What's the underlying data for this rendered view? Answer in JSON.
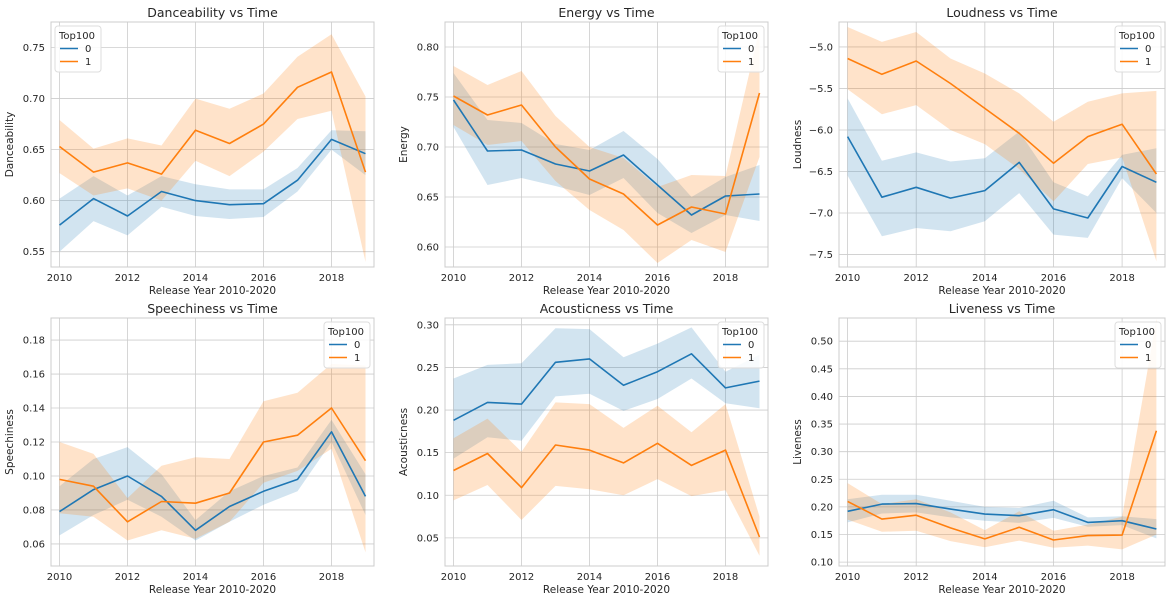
{
  "colors": {
    "series_0": "#1f77b4",
    "series_1": "#ff7f0e",
    "band_0": "#1f77b4",
    "band_1": "#ff7f0e",
    "grid": "#cccccc",
    "frame": "#cccccc"
  },
  "chart_data": [
    {
      "type": "line",
      "title": "Danceability vs Time",
      "xlabel": "Release Year 2010-2020",
      "ylabel": "Danceability",
      "x": [
        2010,
        2011,
        2012,
        2013,
        2014,
        2015,
        2016,
        2017,
        2018,
        2019
      ],
      "xlim": [
        2009.75,
        2019.25
      ],
      "ylim": [
        0.535,
        0.775
      ],
      "xticks": [
        2010,
        2012,
        2014,
        2016,
        2018
      ],
      "yticks": [
        0.55,
        0.6,
        0.65,
        0.7,
        0.75
      ],
      "ytick_labels": [
        "0.55",
        "0.60",
        "0.65",
        "0.70",
        "0.75"
      ],
      "grid": true,
      "legend": {
        "title": "Top100",
        "position": "top-left",
        "entries": [
          "0",
          "1"
        ]
      },
      "series": [
        {
          "name": "0",
          "values": [
            0.576,
            0.602,
            0.585,
            0.609,
            0.6,
            0.596,
            0.597,
            0.62,
            0.66,
            0.646
          ],
          "ci_low": [
            0.55,
            0.58,
            0.566,
            0.594,
            0.585,
            0.582,
            0.584,
            0.609,
            0.65,
            0.625
          ],
          "ci_high": [
            0.602,
            0.624,
            0.605,
            0.624,
            0.616,
            0.611,
            0.611,
            0.632,
            0.669,
            0.668
          ]
        },
        {
          "name": "1",
          "values": [
            0.653,
            0.628,
            0.637,
            0.626,
            0.669,
            0.656,
            0.675,
            0.711,
            0.726,
            0.628
          ],
          "ci_low": [
            0.627,
            0.605,
            0.612,
            0.6,
            0.639,
            0.624,
            0.648,
            0.68,
            0.688,
            0.54
          ],
          "ci_high": [
            0.679,
            0.651,
            0.661,
            0.654,
            0.7,
            0.69,
            0.705,
            0.741,
            0.763,
            0.702
          ]
        }
      ]
    },
    {
      "type": "line",
      "title": "Energy vs Time",
      "xlabel": "Release Year 2010-2020",
      "ylabel": "Energy",
      "x": [
        2010,
        2011,
        2012,
        2013,
        2014,
        2015,
        2016,
        2017,
        2018,
        2019
      ],
      "xlim": [
        2009.75,
        2019.25
      ],
      "ylim": [
        0.58,
        0.825
      ],
      "xticks": [
        2010,
        2012,
        2014,
        2016,
        2018
      ],
      "yticks": [
        0.6,
        0.65,
        0.7,
        0.75,
        0.8
      ],
      "ytick_labels": [
        "0.60",
        "0.65",
        "0.70",
        "0.75",
        "0.80"
      ],
      "grid": true,
      "legend": {
        "title": "Top100",
        "position": "top-right",
        "entries": [
          "0",
          "1"
        ]
      },
      "series": [
        {
          "name": "0",
          "values": [
            0.747,
            0.696,
            0.697,
            0.683,
            0.676,
            0.692,
            0.662,
            0.632,
            0.651,
            0.653
          ],
          "ci_low": [
            0.72,
            0.662,
            0.669,
            0.661,
            0.652,
            0.669,
            0.634,
            0.614,
            0.632,
            0.626
          ],
          "ci_high": [
            0.774,
            0.727,
            0.724,
            0.703,
            0.697,
            0.716,
            0.688,
            0.65,
            0.67,
            0.682
          ]
        },
        {
          "name": "1",
          "values": [
            0.751,
            0.732,
            0.742,
            0.7,
            0.668,
            0.653,
            0.622,
            0.64,
            0.633,
            0.754
          ],
          "ci_low": [
            0.722,
            0.702,
            0.706,
            0.666,
            0.637,
            0.617,
            0.584,
            0.607,
            0.595,
            0.69
          ],
          "ci_high": [
            0.781,
            0.762,
            0.776,
            0.731,
            0.7,
            0.689,
            0.66,
            0.672,
            0.671,
            0.818
          ]
        }
      ]
    },
    {
      "type": "line",
      "title": "Loudness vs Time",
      "xlabel": "Release Year 2010-2020",
      "ylabel": "Loudness",
      "x": [
        2010,
        2011,
        2012,
        2013,
        2014,
        2015,
        2016,
        2017,
        2018,
        2019
      ],
      "xlim": [
        2009.75,
        2019.25
      ],
      "ylim": [
        -7.65,
        -4.7
      ],
      "xticks": [
        2010,
        2012,
        2014,
        2016,
        2018
      ],
      "yticks": [
        -7.5,
        -7.0,
        -6.5,
        -6.0,
        -5.5,
        -5.0
      ],
      "ytick_labels": [
        "−7.5",
        "−7.0",
        "−6.5",
        "−6.0",
        "−5.5",
        "−5.0"
      ],
      "grid": true,
      "legend": {
        "title": "Top100",
        "position": "top-right",
        "entries": [
          "0",
          "1"
        ]
      },
      "series": [
        {
          "name": "0",
          "values": [
            -6.08,
            -6.81,
            -6.69,
            -6.82,
            -6.73,
            -6.39,
            -6.95,
            -7.06,
            -6.44,
            -6.63
          ],
          "ci_low": [
            -6.55,
            -7.28,
            -7.18,
            -7.22,
            -7.1,
            -6.76,
            -7.26,
            -7.3,
            -6.58,
            -7.0
          ],
          "ci_high": [
            -5.62,
            -6.37,
            -6.27,
            -6.38,
            -6.34,
            -6.02,
            -6.63,
            -6.8,
            -6.3,
            -6.22
          ]
        },
        {
          "name": "1",
          "values": [
            -5.14,
            -5.33,
            -5.17,
            -5.44,
            -5.74,
            -6.04,
            -6.4,
            -6.08,
            -5.93,
            -6.53
          ],
          "ci_low": [
            -5.51,
            -5.81,
            -5.7,
            -6.0,
            -6.17,
            -6.47,
            -6.86,
            -6.41,
            -6.33,
            -7.58
          ],
          "ci_high": [
            -4.76,
            -4.94,
            -4.82,
            -5.14,
            -5.32,
            -5.56,
            -5.9,
            -5.66,
            -5.56,
            -5.53
          ]
        }
      ]
    },
    {
      "type": "line",
      "title": "Speechiness vs Time",
      "xlabel": "Release Year 2010-2020",
      "ylabel": "Speechiness",
      "x": [
        2010,
        2011,
        2012,
        2013,
        2014,
        2015,
        2016,
        2017,
        2018,
        2019
      ],
      "xlim": [
        2009.75,
        2019.25
      ],
      "ylim": [
        0.047,
        0.193
      ],
      "xticks": [
        2010,
        2012,
        2014,
        2016,
        2018
      ],
      "yticks": [
        0.06,
        0.08,
        0.1,
        0.12,
        0.14,
        0.16,
        0.18
      ],
      "ytick_labels": [
        "0.06",
        "0.08",
        "0.10",
        "0.12",
        "0.14",
        "0.16",
        "0.18"
      ],
      "grid": true,
      "legend": {
        "title": "Top100",
        "position": "top-right",
        "entries": [
          "0",
          "1"
        ]
      },
      "series": [
        {
          "name": "0",
          "values": [
            0.079,
            0.092,
            0.1,
            0.088,
            0.068,
            0.082,
            0.091,
            0.098,
            0.126,
            0.088
          ],
          "ci_low": [
            0.065,
            0.077,
            0.086,
            0.076,
            0.062,
            0.073,
            0.083,
            0.091,
            0.12,
            0.077
          ],
          "ci_high": [
            0.094,
            0.11,
            0.117,
            0.101,
            0.074,
            0.091,
            0.1,
            0.105,
            0.133,
            0.101
          ]
        },
        {
          "name": "1",
          "values": [
            0.098,
            0.094,
            0.073,
            0.085,
            0.084,
            0.09,
            0.12,
            0.124,
            0.14,
            0.109
          ],
          "ci_low": [
            0.078,
            0.076,
            0.062,
            0.068,
            0.063,
            0.073,
            0.096,
            0.103,
            0.116,
            0.055
          ],
          "ci_high": [
            0.12,
            0.113,
            0.087,
            0.106,
            0.111,
            0.11,
            0.144,
            0.149,
            0.166,
            0.165
          ]
        }
      ]
    },
    {
      "type": "line",
      "title": "Acousticness vs Time",
      "xlabel": "Release Year 2010-2020",
      "ylabel": "Acousticness",
      "x": [
        2010,
        2011,
        2012,
        2013,
        2014,
        2015,
        2016,
        2017,
        2018,
        2019
      ],
      "xlim": [
        2009.75,
        2019.25
      ],
      "ylim": [
        0.017,
        0.308
      ],
      "xticks": [
        2010,
        2012,
        2014,
        2016,
        2018
      ],
      "yticks": [
        0.05,
        0.1,
        0.15,
        0.2,
        0.25,
        0.3
      ],
      "ytick_labels": [
        "0.05",
        "0.10",
        "0.15",
        "0.20",
        "0.25",
        "0.30"
      ],
      "grid": true,
      "legend": {
        "title": "Top100",
        "position": "top-right",
        "entries": [
          "0",
          "1"
        ]
      },
      "series": [
        {
          "name": "0",
          "values": [
            0.188,
            0.209,
            0.207,
            0.256,
            0.26,
            0.229,
            0.245,
            0.266,
            0.226,
            0.234
          ],
          "ci_low": [
            0.143,
            0.168,
            0.164,
            0.216,
            0.219,
            0.199,
            0.213,
            0.237,
            0.208,
            0.202
          ],
          "ci_high": [
            0.237,
            0.253,
            0.255,
            0.296,
            0.295,
            0.262,
            0.278,
            0.297,
            0.245,
            0.265
          ]
        },
        {
          "name": "1",
          "values": [
            0.129,
            0.149,
            0.109,
            0.159,
            0.153,
            0.138,
            0.161,
            0.135,
            0.153,
            0.051
          ],
          "ci_low": [
            0.094,
            0.112,
            0.071,
            0.111,
            0.107,
            0.1,
            0.119,
            0.099,
            0.106,
            0.029
          ],
          "ci_high": [
            0.167,
            0.19,
            0.151,
            0.209,
            0.207,
            0.179,
            0.205,
            0.174,
            0.207,
            0.075
          ]
        }
      ]
    },
    {
      "type": "line",
      "title": "Liveness vs Time",
      "xlabel": "Release Year 2010-2020",
      "ylabel": "Liveness",
      "x": [
        2010,
        2011,
        2012,
        2013,
        2014,
        2015,
        2016,
        2017,
        2018,
        2019
      ],
      "xlim": [
        2009.75,
        2019.25
      ],
      "ylim": [
        0.093,
        0.542
      ],
      "xticks": [
        2010,
        2012,
        2014,
        2016,
        2018
      ],
      "yticks": [
        0.1,
        0.15,
        0.2,
        0.25,
        0.3,
        0.35,
        0.4,
        0.45,
        0.5
      ],
      "ytick_labels": [
        "0.10",
        "0.15",
        "0.20",
        "0.25",
        "0.30",
        "0.35",
        "0.40",
        "0.45",
        "0.50"
      ],
      "grid": true,
      "legend": {
        "title": "Top100",
        "position": "top-right",
        "entries": [
          "0",
          "1"
        ]
      },
      "series": [
        {
          "name": "0",
          "values": [
            0.192,
            0.205,
            0.206,
            0.196,
            0.187,
            0.184,
            0.195,
            0.172,
            0.175,
            0.16
          ],
          "ci_low": [
            0.172,
            0.188,
            0.19,
            0.181,
            0.175,
            0.171,
            0.18,
            0.164,
            0.167,
            0.143
          ],
          "ci_high": [
            0.214,
            0.222,
            0.222,
            0.211,
            0.2,
            0.198,
            0.211,
            0.181,
            0.183,
            0.178
          ]
        },
        {
          "name": "1",
          "values": [
            0.21,
            0.178,
            0.185,
            0.162,
            0.142,
            0.163,
            0.14,
            0.148,
            0.149,
            0.338
          ],
          "ci_low": [
            0.177,
            0.155,
            0.157,
            0.138,
            0.127,
            0.139,
            0.126,
            0.13,
            0.123,
            0.15
          ],
          "ci_high": [
            0.243,
            0.205,
            0.214,
            0.19,
            0.158,
            0.192,
            0.157,
            0.168,
            0.182,
            0.54
          ]
        }
      ]
    }
  ]
}
